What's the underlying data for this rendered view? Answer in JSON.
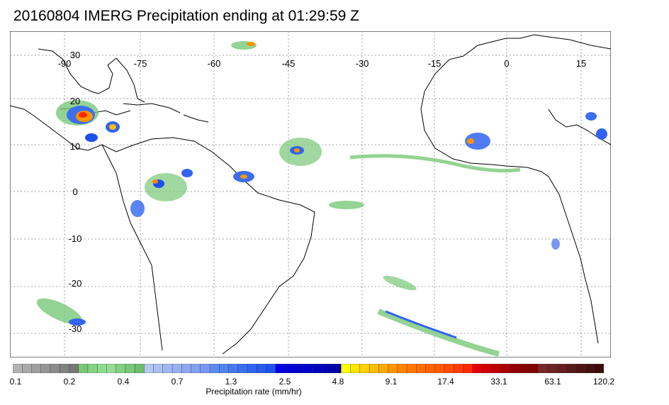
{
  "title": "20160804 IMERG Precipitation ending at 01:29:59 Z",
  "map": {
    "lon_labels": [
      "-90",
      "-75",
      "-60",
      "-45",
      "-30",
      "-15",
      "0",
      "15"
    ],
    "lat_labels": [
      "30",
      "20",
      "10",
      "0",
      "-10",
      "-20",
      "-30"
    ],
    "extent": {
      "lon": [
        -97,
        20
      ],
      "lat": [
        -33,
        33
      ]
    }
  },
  "colorbar": {
    "ticks": [
      "0.1",
      "0.2",
      "0.4",
      "0.7",
      "1.3",
      "2.5",
      "4.8",
      "9.1",
      "17.4",
      "33.1",
      "63.1",
      "120.2"
    ],
    "units": "Precipitation rate (mm/hr)",
    "colors": [
      "#b4b4b4",
      "#aaaaaa",
      "#a0a0a0",
      "#969696",
      "#8c8c8c",
      "#828282",
      "#787878",
      "#78c878",
      "#82d282",
      "#8cdc8c",
      "#96dc96",
      "#82d282",
      "#78c878",
      "#6ebe6e",
      "#b4c8f0",
      "#aac0f0",
      "#a0b8f0",
      "#96b0f0",
      "#8ca8f0",
      "#82a0f0",
      "#7898f0",
      "#5a8cf0",
      "#5082f0",
      "#4678f0",
      "#3c6ef0",
      "#3264f0",
      "#285af0",
      "#1e50f0",
      "#0000e6",
      "#0000dc",
      "#0000d2",
      "#0000c8",
      "#0000be",
      "#0000b4",
      "#0000aa",
      "#ffff00",
      "#ffe600",
      "#ffd200",
      "#ffbe00",
      "#ffaa00",
      "#ff9600",
      "#ff8200",
      "#ff7800",
      "#ff6e00",
      "#ff6400",
      "#ff5a00",
      "#ff4b00",
      "#ff3c00",
      "#ff2800",
      "#e60000",
      "#d20000",
      "#be0000",
      "#aa0000",
      "#960000",
      "#8c0000",
      "#820000",
      "#782828",
      "#6e2323",
      "#641e1e",
      "#5a1919",
      "#501414",
      "#461010",
      "#3c0c0c"
    ]
  }
}
